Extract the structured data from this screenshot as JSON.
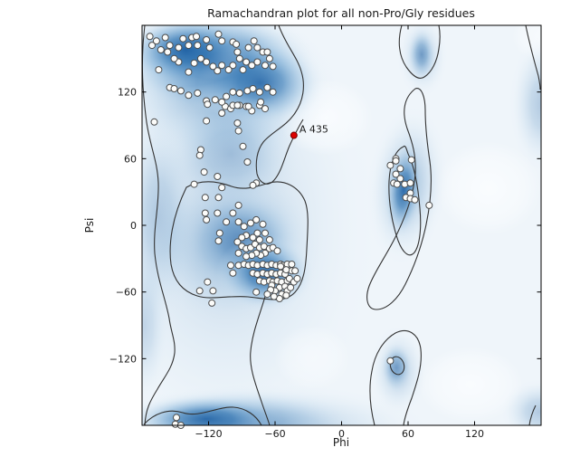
{
  "title": "Ramachandran plot for all non-Pro/Gly residues",
  "colors": {
    "background": "#ffffff",
    "plot_background": "#eff5fa",
    "density_dark": "#15599f",
    "density_mid": "#2f74b2",
    "density_light": "#7fb0d8",
    "contour": "#333333",
    "frame": "#000000",
    "point_fill": "#fcfcfa",
    "point_stroke": "#4d4d4d",
    "highlight_fill": "#dd0000",
    "highlight_stroke": "#7a0000",
    "text": "#1a1a1a"
  },
  "chart_data": {
    "type": "scatter",
    "title": "Ramachandran plot for all non-Pro/Gly residues",
    "xlabel": "Phi",
    "ylabel": "Psi",
    "xlim": [
      -180,
      180
    ],
    "ylim": [
      -180,
      180
    ],
    "x_ticks": [
      -120,
      -60,
      0,
      60,
      120
    ],
    "y_ticks": [
      120,
      60,
      0,
      -60,
      -120
    ],
    "grid": false,
    "legend": "none",
    "background_layers": [
      "favored-region-density-shading",
      "contour-lines"
    ],
    "highlight_point": {
      "phi": -43,
      "psi": 81,
      "label": "A 435"
    },
    "points": [
      [
        -173,
        170
      ],
      [
        -167,
        166
      ],
      [
        -159,
        169
      ],
      [
        -155,
        162
      ],
      [
        -147,
        160
      ],
      [
        -143,
        168
      ],
      [
        -138,
        162
      ],
      [
        -135,
        169
      ],
      [
        -131,
        170
      ],
      [
        -130,
        162
      ],
      [
        -122,
        167
      ],
      [
        -119,
        160
      ],
      [
        -111,
        172
      ],
      [
        -108,
        166
      ],
      [
        -98,
        165
      ],
      [
        -95,
        163
      ],
      [
        -94,
        156
      ],
      [
        -84,
        160
      ],
      [
        -79,
        166
      ],
      [
        -76,
        160
      ],
      [
        -71,
        156
      ],
      [
        -67,
        156
      ],
      [
        -65,
        150
      ],
      [
        -62,
        143
      ],
      [
        -69,
        144
      ],
      [
        -76,
        147
      ],
      [
        -81,
        144
      ],
      [
        -86,
        147
      ],
      [
        -92,
        150
      ],
      [
        -89,
        140
      ],
      [
        -98,
        144
      ],
      [
        -102,
        140
      ],
      [
        -108,
        144
      ],
      [
        -112,
        139
      ],
      [
        -116,
        143
      ],
      [
        -122,
        147
      ],
      [
        -127,
        150
      ],
      [
        -133,
        146
      ],
      [
        -138,
        138
      ],
      [
        -147,
        147
      ],
      [
        -151,
        150
      ],
      [
        -157,
        156
      ],
      [
        -163,
        158
      ],
      [
        -171,
        162
      ],
      [
        -165,
        140
      ],
      [
        -155,
        124
      ],
      [
        -151,
        123
      ],
      [
        -145,
        121
      ],
      [
        -138,
        117
      ],
      [
        -130,
        119
      ],
      [
        -122,
        112
      ],
      [
        -114,
        113
      ],
      [
        -104,
        116
      ],
      [
        -98,
        120
      ],
      [
        -92,
        119
      ],
      [
        -85,
        121
      ],
      [
        -80,
        123
      ],
      [
        -74,
        120
      ],
      [
        -67,
        124
      ],
      [
        -62,
        120
      ],
      [
        -105,
        107
      ],
      [
        -100,
        105
      ],
      [
        -92,
        108
      ],
      [
        -86,
        107
      ],
      [
        -81,
        103
      ],
      [
        -74,
        108
      ],
      [
        -69,
        105
      ],
      [
        -121,
        109
      ],
      [
        -108,
        111
      ],
      [
        -98,
        108
      ],
      [
        -94,
        108
      ],
      [
        -84,
        107
      ],
      [
        -108,
        101
      ],
      [
        -73,
        111
      ],
      [
        -122,
        94
      ],
      [
        -94,
        92
      ],
      [
        -93,
        85
      ],
      [
        -89,
        71
      ],
      [
        -85,
        57
      ],
      [
        -127,
        68
      ],
      [
        -128,
        63
      ],
      [
        -124,
        48
      ],
      [
        -169,
        93
      ],
      [
        -133,
        37
      ],
      [
        -112,
        44
      ],
      [
        -108,
        34
      ],
      [
        -77,
        38
      ],
      [
        -80,
        36
      ],
      [
        -123,
        25
      ],
      [
        -111,
        25
      ],
      [
        -123,
        11
      ],
      [
        -112,
        11
      ],
      [
        -122,
        5
      ],
      [
        -93,
        18
      ],
      [
        -98,
        11
      ],
      [
        -104,
        3
      ],
      [
        -110,
        -7
      ],
      [
        -111,
        -14
      ],
      [
        -93,
        3
      ],
      [
        -88,
        -1
      ],
      [
        -82,
        2
      ],
      [
        -77,
        5
      ],
      [
        -71,
        1
      ],
      [
        -76,
        -7
      ],
      [
        -69,
        -7
      ],
      [
        -65,
        -13
      ],
      [
        -74,
        -13
      ],
      [
        -80,
        -11
      ],
      [
        -86,
        -9
      ],
      [
        -90,
        -11
      ],
      [
        -94,
        -15
      ],
      [
        -90,
        -19
      ],
      [
        -86,
        -21
      ],
      [
        -82,
        -20
      ],
      [
        -78,
        -17
      ],
      [
        -74,
        -20
      ],
      [
        -70,
        -19
      ],
      [
        -65,
        -21
      ],
      [
        -62,
        -20
      ],
      [
        -58,
        -23
      ],
      [
        -69,
        -25
      ],
      [
        -73,
        -27
      ],
      [
        -77,
        -25
      ],
      [
        -81,
        -27
      ],
      [
        -86,
        -28
      ],
      [
        -93,
        -25
      ],
      [
        -100,
        -36
      ],
      [
        -93,
        -36
      ],
      [
        -88,
        -35
      ],
      [
        -84,
        -36
      ],
      [
        -80,
        -35
      ],
      [
        -76,
        -36
      ],
      [
        -71,
        -35
      ],
      [
        -67,
        -36
      ],
      [
        -63,
        -35
      ],
      [
        -59,
        -36
      ],
      [
        -55,
        -35
      ],
      [
        -53,
        -36
      ],
      [
        -49,
        -35
      ],
      [
        -98,
        -43
      ],
      [
        -80,
        -43
      ],
      [
        -76,
        -44
      ],
      [
        -71,
        -43
      ],
      [
        -67,
        -44
      ],
      [
        -63,
        -43
      ],
      [
        -59,
        -44
      ],
      [
        -55,
        -43
      ],
      [
        -51,
        -44
      ],
      [
        -74,
        -50
      ],
      [
        -70,
        -51
      ],
      [
        -65,
        -50
      ],
      [
        -62,
        -51
      ],
      [
        -58,
        -50
      ],
      [
        -54,
        -51
      ],
      [
        -49,
        -50
      ],
      [
        -77,
        -60
      ],
      [
        -128,
        -59
      ],
      [
        -121,
        -51
      ],
      [
        -116,
        -59
      ],
      [
        -117,
        -70
      ],
      [
        -63,
        -54
      ],
      [
        -56,
        -56
      ],
      [
        -51,
        -55
      ],
      [
        -47,
        -48
      ],
      [
        -45,
        -41
      ],
      [
        -49,
        -59
      ],
      [
        -54,
        -62
      ],
      [
        -60,
        -59
      ],
      [
        -64,
        -58
      ],
      [
        -43,
        -51
      ],
      [
        -46,
        -56
      ],
      [
        -50,
        -63
      ],
      [
        -56,
        -66
      ],
      [
        -61,
        -64
      ],
      [
        -67,
        -62
      ],
      [
        -55,
        -37
      ],
      [
        -50,
        -40
      ],
      [
        -45,
        -35
      ],
      [
        -42,
        -41
      ],
      [
        -40,
        -48
      ],
      [
        49,
        60
      ],
      [
        44,
        54
      ],
      [
        49,
        58
      ],
      [
        63,
        59
      ],
      [
        53,
        51
      ],
      [
        49,
        46
      ],
      [
        53,
        42
      ],
      [
        47,
        38
      ],
      [
        50,
        37
      ],
      [
        57,
        37
      ],
      [
        62,
        38
      ],
      [
        62,
        29
      ],
      [
        58,
        25
      ],
      [
        62,
        24
      ],
      [
        66,
        23
      ],
      [
        79,
        18
      ],
      [
        44,
        -122
      ],
      [
        -149,
        -173
      ],
      [
        -150,
        -179
      ],
      [
        -145,
        -180
      ]
    ]
  }
}
